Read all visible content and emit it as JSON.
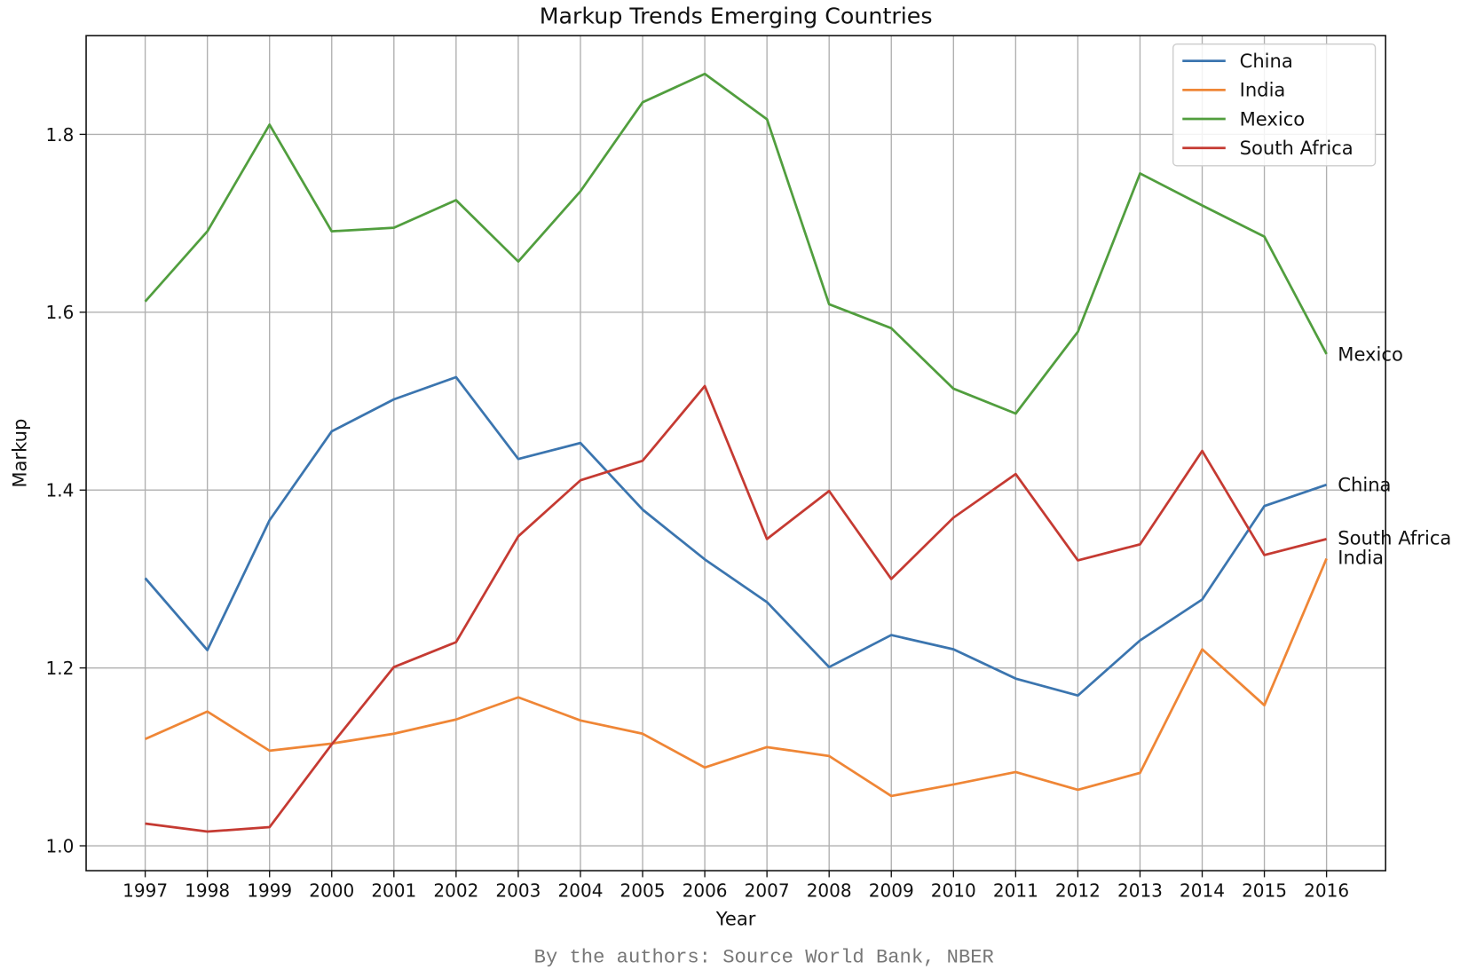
{
  "chart_data": {
    "type": "line",
    "title": "Markup Trends Emerging Countries",
    "xlabel": "Year",
    "ylabel": "Markup",
    "x": [
      1997,
      1998,
      1999,
      2000,
      2001,
      2002,
      2003,
      2004,
      2005,
      2006,
      2007,
      2008,
      2009,
      2010,
      2011,
      2012,
      2013,
      2014,
      2015,
      2016
    ],
    "xlim": [
      1996.05,
      2016.95
    ],
    "ylim": [
      0.972,
      1.911
    ],
    "yticks": [
      1.0,
      1.2,
      1.4,
      1.6,
      1.8
    ],
    "ytick_labels": [
      "1.0",
      "1.2",
      "1.4",
      "1.6",
      "1.8"
    ],
    "grid": true,
    "legend_position": "top-right",
    "series": [
      {
        "name": "China",
        "color": "#3b75af",
        "values": [
          1.301,
          1.22,
          1.366,
          1.466,
          1.502,
          1.527,
          1.435,
          1.453,
          1.378,
          1.322,
          1.274,
          1.201,
          1.237,
          1.221,
          1.188,
          1.169,
          1.231,
          1.277,
          1.382,
          1.406
        ]
      },
      {
        "name": "India",
        "color": "#ef8636",
        "values": [
          1.12,
          1.151,
          1.107,
          1.115,
          1.126,
          1.142,
          1.167,
          1.141,
          1.126,
          1.088,
          1.111,
          1.101,
          1.056,
          1.069,
          1.083,
          1.063,
          1.082,
          1.221,
          1.158,
          1.323
        ]
      },
      {
        "name": "Mexico",
        "color": "#519e3e",
        "values": [
          1.612,
          1.691,
          1.811,
          1.691,
          1.695,
          1.726,
          1.657,
          1.736,
          1.836,
          1.868,
          1.817,
          1.609,
          1.582,
          1.514,
          1.486,
          1.578,
          1.756,
          1.72,
          1.685,
          1.553
        ]
      },
      {
        "name": "South Africa",
        "color": "#c53a32",
        "values": [
          1.025,
          1.016,
          1.021,
          1.114,
          1.201,
          1.229,
          1.348,
          1.411,
          1.433,
          1.517,
          1.345,
          1.399,
          1.3,
          1.369,
          1.418,
          1.321,
          1.339,
          1.444,
          1.327,
          1.345
        ]
      }
    ],
    "end_labels": [
      "Mexico",
      "China",
      "South Africa",
      "India"
    ]
  },
  "caption": "By the authors: Source World Bank, NBER"
}
